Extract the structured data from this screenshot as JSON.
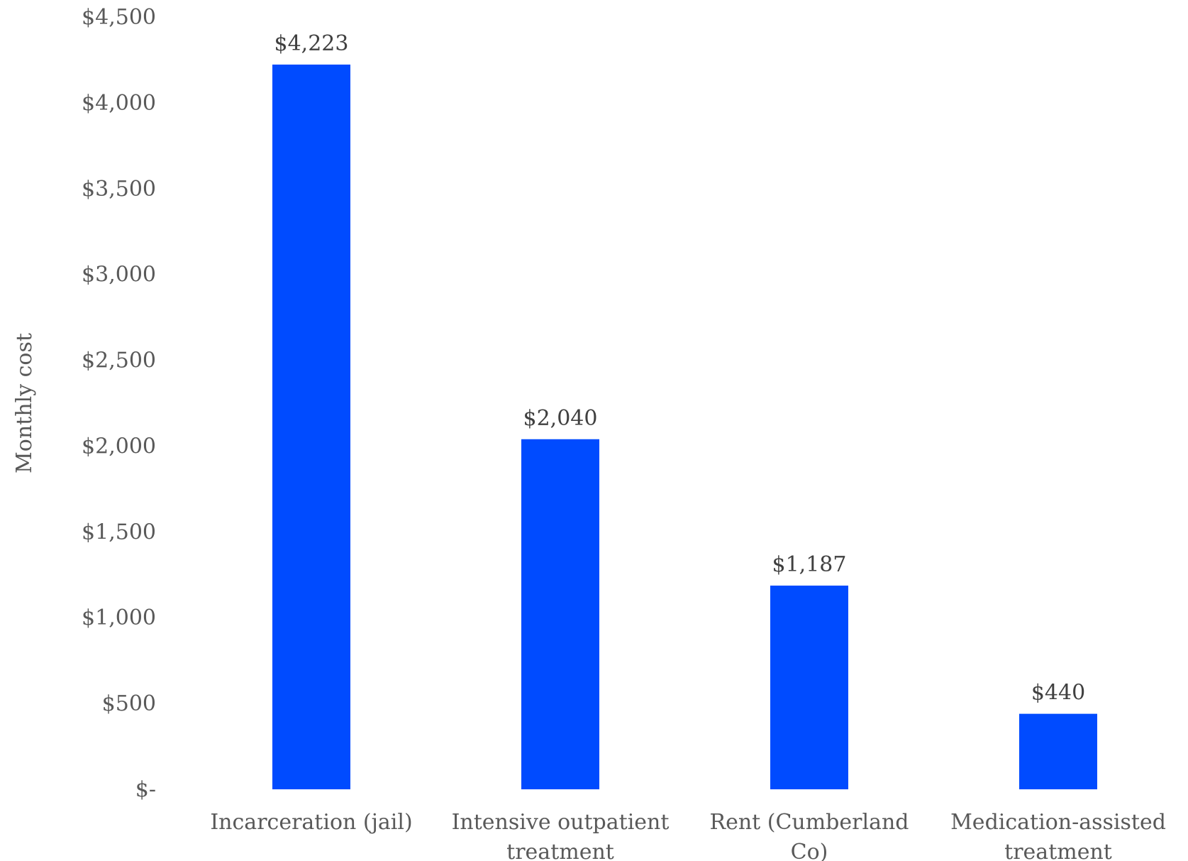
{
  "chart_data": {
    "type": "bar",
    "title": "",
    "xlabel": "",
    "ylabel": "Monthly cost",
    "ylim": [
      0,
      4500
    ],
    "y_ticks": [
      0,
      500,
      1000,
      1500,
      2000,
      2500,
      3000,
      3500,
      4000,
      4500
    ],
    "y_tick_labels": [
      "$-",
      "$500",
      "$1,000",
      "$1,500",
      "$2,000",
      "$2,500",
      "$3,000",
      "$3,500",
      "$4,000",
      "$4,500"
    ],
    "categories": [
      [
        "Incarceration (jail)"
      ],
      [
        "Intensive outpatient",
        "treatment"
      ],
      [
        "Rent (Cumberland",
        "Co)"
      ],
      [
        "Medication-assisted",
        "treatment"
      ]
    ],
    "values": [
      4223,
      2040,
      1187,
      440
    ],
    "data_labels": [
      "$4,223",
      "$2,040",
      "$1,187",
      "$440"
    ],
    "bar_color": "#004bff",
    "grid": false,
    "legend": "none"
  }
}
